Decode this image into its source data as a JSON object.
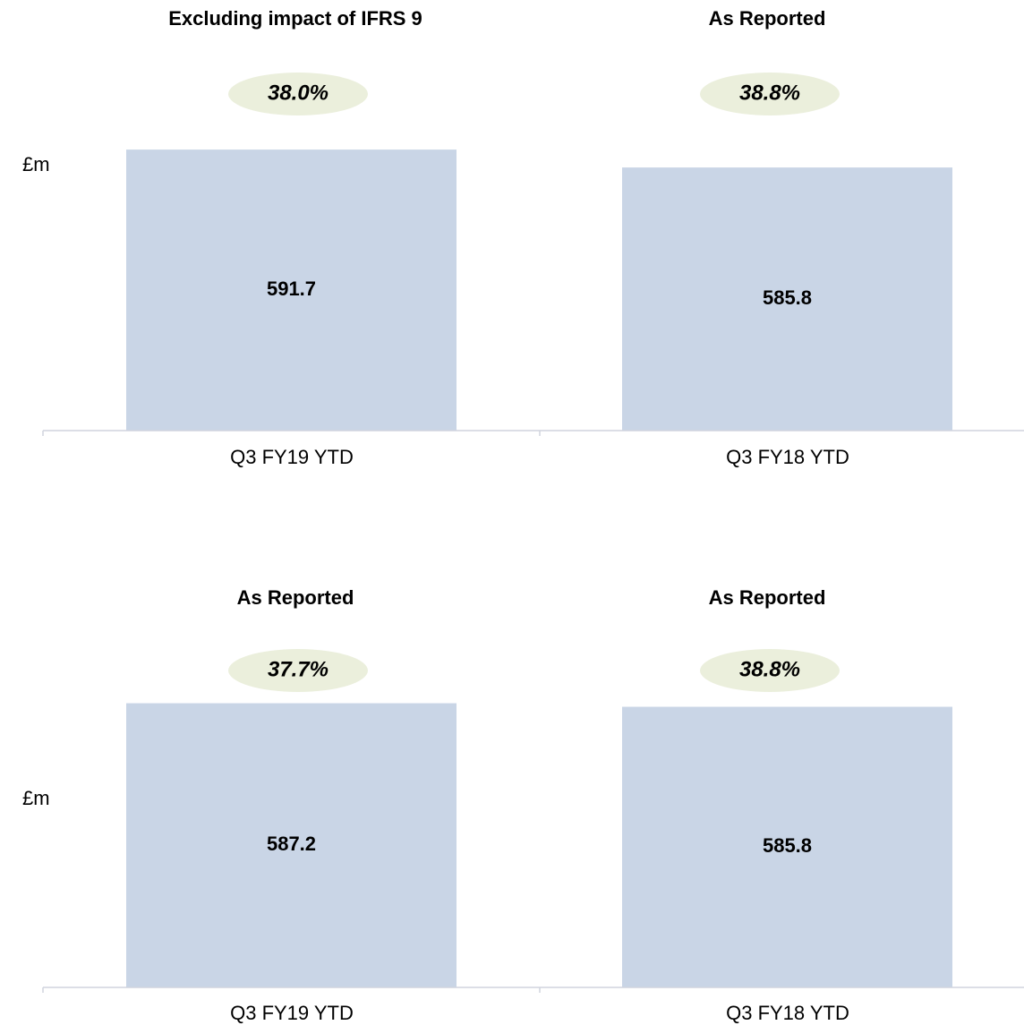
{
  "chart_data": [
    {
      "type": "bar",
      "y_label": "£m",
      "bar_titles": [
        "Excluding impact of IFRS 9",
        "As Reported"
      ],
      "ratios": [
        38.0,
        38.8
      ],
      "ratio_labels": [
        "38.0%",
        "38.8%"
      ],
      "categories": [
        "Q3 FY19 YTD",
        "Q3 FY18 YTD"
      ],
      "values": [
        591.7,
        585.8
      ],
      "color": "#c9d5e6",
      "ratio_color": "#ebefdc",
      "ylim": [
        499,
        600
      ]
    },
    {
      "type": "bar",
      "y_label": "£m",
      "bar_titles": [
        "As Reported",
        "As Reported"
      ],
      "ratios": [
        37.7,
        38.8
      ],
      "ratio_labels": [
        "37.7%",
        "38.8%"
      ],
      "categories": [
        "Q3 FY19 YTD",
        "Q3 FY18 YTD"
      ],
      "values": [
        587.2,
        585.8
      ],
      "color": "#c9d5e6",
      "ratio_color": "#ebefdc",
      "ylim": [
        476,
        600
      ]
    }
  ]
}
